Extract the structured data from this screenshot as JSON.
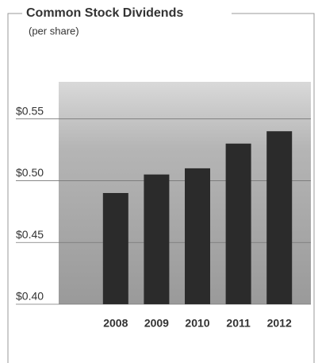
{
  "chart_data": {
    "type": "bar",
    "title": "Common Stock Dividends",
    "subtitle": "(per share)",
    "categories": [
      "2008",
      "2009",
      "2010",
      "2011",
      "2012"
    ],
    "values": [
      0.49,
      0.505,
      0.51,
      0.53,
      0.54
    ],
    "color": "#2b2b2b",
    "ylim": [
      0.4,
      0.58
    ],
    "yticks": [
      {
        "value": 0.4,
        "label": "$0.40"
      },
      {
        "value": 0.45,
        "label": "$0.45"
      },
      {
        "value": 0.5,
        "label": "$0.50"
      },
      {
        "value": 0.55,
        "label": "$0.55"
      }
    ],
    "grid": true
  }
}
